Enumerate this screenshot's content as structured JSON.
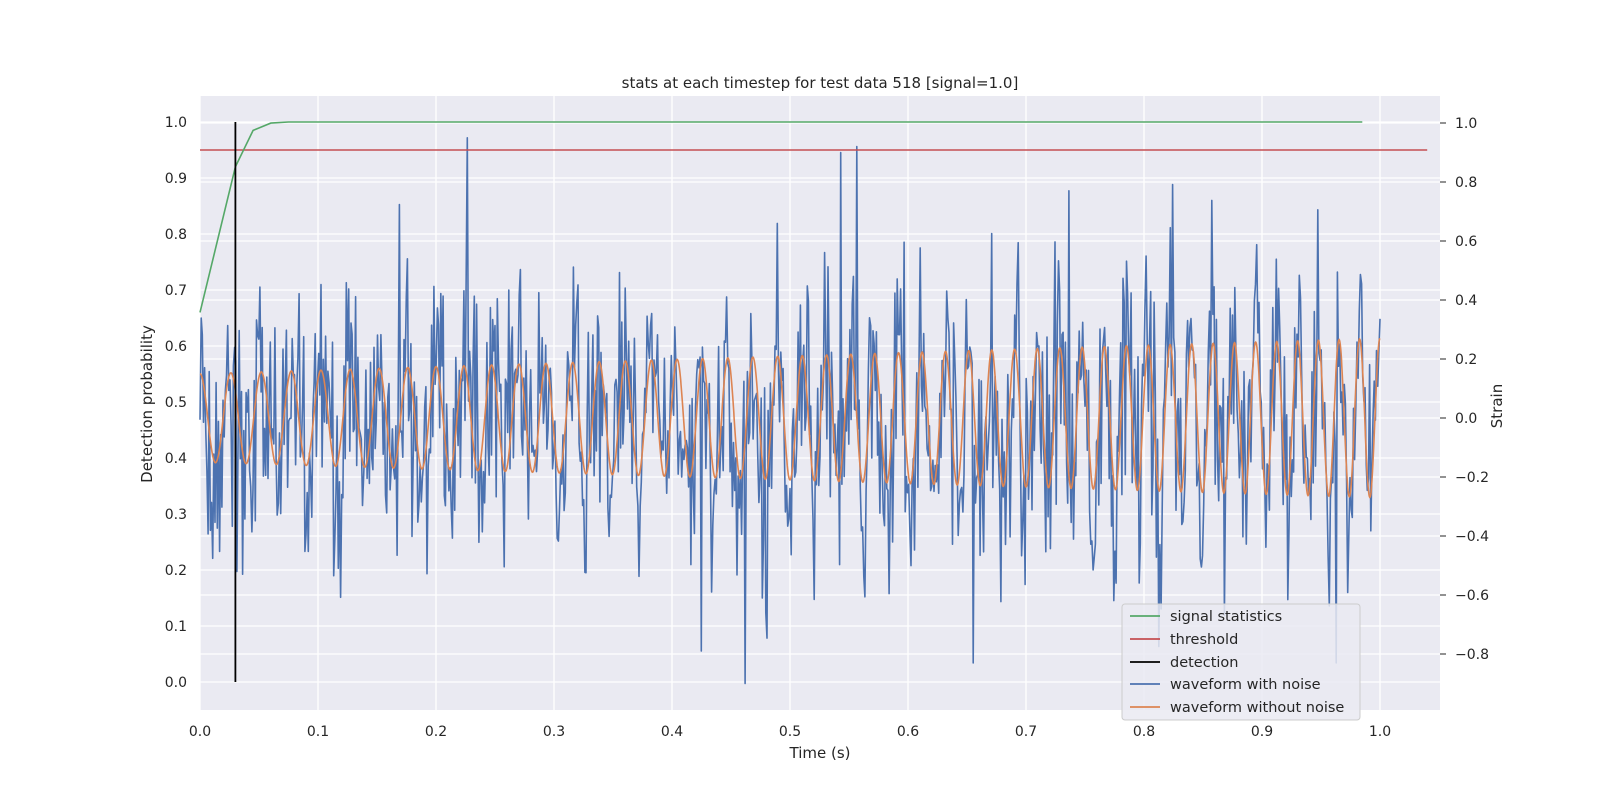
{
  "chart_data": {
    "type": "line",
    "title": "stats at each timestep for test data 518 [signal=1.0]",
    "xlabel": "Time (s)",
    "ylabel_left": "Detection probability",
    "ylabel_right": "Strain",
    "xlim": [
      0.0,
      1.05
    ],
    "ylim_left": [
      -0.05,
      1.05
    ],
    "ylim_right": [
      -0.98,
      1.08
    ],
    "grid": true,
    "legend_position": "lower-right",
    "x_ticks": [
      {
        "value": 0.0,
        "label": "0.0"
      },
      {
        "value": 0.1,
        "label": "0.1"
      },
      {
        "value": 0.2,
        "label": "0.2"
      },
      {
        "value": 0.3,
        "label": "0.3"
      },
      {
        "value": 0.4,
        "label": "0.4"
      },
      {
        "value": 0.5,
        "label": "0.5"
      },
      {
        "value": 0.6,
        "label": "0.6"
      },
      {
        "value": 0.7,
        "label": "0.7"
      },
      {
        "value": 0.8,
        "label": "0.8"
      },
      {
        "value": 0.9,
        "label": "0.9"
      },
      {
        "value": 1.0,
        "label": "1.0"
      }
    ],
    "y_left_ticks": [
      {
        "value": 0.0,
        "label": "0.0"
      },
      {
        "value": 0.1,
        "label": "0.1"
      },
      {
        "value": 0.2,
        "label": "0.2"
      },
      {
        "value": 0.3,
        "label": "0.3"
      },
      {
        "value": 0.4,
        "label": "0.4"
      },
      {
        "value": 0.5,
        "label": "0.5"
      },
      {
        "value": 0.6,
        "label": "0.6"
      },
      {
        "value": 0.7,
        "label": "0.7"
      },
      {
        "value": 0.8,
        "label": "0.8"
      },
      {
        "value": 0.9,
        "label": "0.9"
      },
      {
        "value": 1.0,
        "label": "1.0"
      }
    ],
    "y_right_ticks": [
      {
        "value": -0.8,
        "label": "−0.8"
      },
      {
        "value": -0.6,
        "label": "−0.6"
      },
      {
        "value": -0.4,
        "label": "−0.4"
      },
      {
        "value": -0.2,
        "label": "−0.2"
      },
      {
        "value": 0.0,
        "label": "0.0"
      },
      {
        "value": 0.2,
        "label": "0.2"
      },
      {
        "value": 0.4,
        "label": "0.4"
      },
      {
        "value": 0.6,
        "label": "0.6"
      },
      {
        "value": 0.8,
        "label": "0.8"
      },
      {
        "value": 1.0,
        "label": "1.0"
      }
    ],
    "series": [
      {
        "name": "signal statistics",
        "axis": "left",
        "color": "#55a868",
        "x": [
          0.0,
          0.015,
          0.03,
          0.045,
          0.06,
          0.075,
          0.1,
          0.2,
          0.4,
          0.6,
          0.8,
          0.985
        ],
        "y": [
          0.66,
          0.79,
          0.92,
          0.985,
          0.998,
          1.0,
          1.0,
          1.0,
          1.0,
          1.0,
          1.0,
          1.0
        ]
      },
      {
        "name": "threshold",
        "axis": "left",
        "color": "#c44e52",
        "x": [
          0.0,
          1.04
        ],
        "y": [
          0.95,
          0.95
        ]
      },
      {
        "name": "detection",
        "axis": "left",
        "color": "#000000",
        "x": [
          0.03,
          0.03
        ],
        "y": [
          0.0,
          1.0
        ]
      },
      {
        "name": "waveform with noise",
        "axis": "right",
        "color": "#4c72b0",
        "description_points": {
          "x_start": 0.0,
          "x_end": 1.0,
          "samples": 1024,
          "notable_peaks": [
            {
              "x": 0.227,
              "y": 0.95
            },
            {
              "x": 0.543,
              "y": 0.9
            },
            {
              "x": 0.557,
              "y": 0.92
            },
            {
              "x": 0.736,
              "y": 0.77
            },
            {
              "x": 0.462,
              "y": -0.9
            },
            {
              "x": 0.425,
              "y": -0.79
            },
            {
              "x": 0.655,
              "y": -0.83
            },
            {
              "x": 0.963,
              "y": -0.83
            }
          ],
          "typical_range": [
            -0.5,
            0.55
          ]
        }
      },
      {
        "name": "waveform without noise",
        "axis": "right",
        "color": "#dd8452",
        "description_points": {
          "x_start": 0.0,
          "x_end": 1.0,
          "start_frequency_hz": 38,
          "end_frequency_hz": 58,
          "start_amplitude": 0.15,
          "end_amplitude": 0.27
        }
      }
    ]
  }
}
